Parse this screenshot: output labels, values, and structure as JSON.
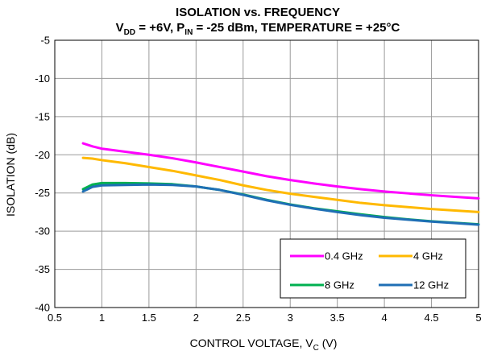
{
  "chart_data": {
    "type": "line",
    "title": "ISOLATION vs. FREQUENCY",
    "subtitle": {
      "vdd_main": "V",
      "vdd_sub": "DD",
      "vdd_rest": " = +6V, P",
      "pin_sub": "IN",
      "pin_rest": " = -25 dBm, TEMPERATURE = +25°C"
    },
    "xlabel": {
      "main": "CONTROL VOLTAGE, V",
      "sub": "C",
      "unit": " (V)"
    },
    "ylabel": "ISOLATION (dB)",
    "xlim": [
      0.5,
      5
    ],
    "ylim": [
      -40,
      -5
    ],
    "xticks": [
      "0.5",
      "1",
      "1.5",
      "2",
      "2.5",
      "3",
      "3.5",
      "4",
      "4.5",
      "5"
    ],
    "yticks": [
      "-5",
      "-10",
      "-15",
      "-20",
      "-25",
      "-30",
      "-35",
      "-40"
    ],
    "grid": true,
    "legend_position": "bottom-right",
    "series": [
      {
        "name": "0.4 GHz",
        "color": "#ff00ff",
        "points": [
          [
            0.8,
            -18.5
          ],
          [
            0.9,
            -18.9
          ],
          [
            1.0,
            -19.2
          ],
          [
            1.25,
            -19.6
          ],
          [
            1.5,
            -20.0
          ],
          [
            1.75,
            -20.45
          ],
          [
            2.0,
            -21.0
          ],
          [
            2.25,
            -21.6
          ],
          [
            2.5,
            -22.2
          ],
          [
            2.75,
            -22.8
          ],
          [
            3.0,
            -23.3
          ],
          [
            3.25,
            -23.75
          ],
          [
            3.5,
            -24.15
          ],
          [
            3.75,
            -24.5
          ],
          [
            4.0,
            -24.8
          ],
          [
            4.25,
            -25.05
          ],
          [
            4.5,
            -25.3
          ],
          [
            4.75,
            -25.5
          ],
          [
            5.0,
            -25.7
          ]
        ]
      },
      {
        "name": "4 GHz",
        "color": "#ffb900",
        "points": [
          [
            0.8,
            -20.4
          ],
          [
            0.9,
            -20.5
          ],
          [
            1.0,
            -20.7
          ],
          [
            1.25,
            -21.1
          ],
          [
            1.5,
            -21.6
          ],
          [
            1.75,
            -22.1
          ],
          [
            2.0,
            -22.7
          ],
          [
            2.25,
            -23.3
          ],
          [
            2.5,
            -24.0
          ],
          [
            2.75,
            -24.6
          ],
          [
            3.0,
            -25.1
          ],
          [
            3.25,
            -25.5
          ],
          [
            3.5,
            -25.9
          ],
          [
            3.75,
            -26.3
          ],
          [
            4.0,
            -26.6
          ],
          [
            4.25,
            -26.85
          ],
          [
            4.5,
            -27.1
          ],
          [
            4.75,
            -27.3
          ],
          [
            5.0,
            -27.5
          ]
        ]
      },
      {
        "name": "8 GHz",
        "color": "#00b050",
        "points": [
          [
            0.8,
            -24.5
          ],
          [
            0.85,
            -24.2
          ],
          [
            0.9,
            -23.9
          ],
          [
            1.0,
            -23.7
          ],
          [
            1.25,
            -23.7
          ],
          [
            1.5,
            -23.75
          ],
          [
            1.75,
            -23.85
          ],
          [
            2.0,
            -24.15
          ],
          [
            2.25,
            -24.6
          ],
          [
            2.5,
            -25.2
          ],
          [
            2.75,
            -25.9
          ],
          [
            3.0,
            -26.5
          ],
          [
            3.25,
            -27.0
          ],
          [
            3.5,
            -27.4
          ],
          [
            3.75,
            -27.8
          ],
          [
            4.0,
            -28.15
          ],
          [
            4.25,
            -28.45
          ],
          [
            4.5,
            -28.7
          ],
          [
            4.75,
            -28.9
          ],
          [
            5.0,
            -29.1
          ]
        ]
      },
      {
        "name": "12 GHz",
        "color": "#1f6fb5",
        "points": [
          [
            0.8,
            -24.8
          ],
          [
            0.85,
            -24.5
          ],
          [
            0.9,
            -24.2
          ],
          [
            1.0,
            -24.0
          ],
          [
            1.25,
            -23.95
          ],
          [
            1.5,
            -23.9
          ],
          [
            1.75,
            -23.95
          ],
          [
            2.0,
            -24.15
          ],
          [
            2.25,
            -24.6
          ],
          [
            2.5,
            -25.25
          ],
          [
            2.75,
            -25.95
          ],
          [
            3.0,
            -26.55
          ],
          [
            3.25,
            -27.05
          ],
          [
            3.5,
            -27.5
          ],
          [
            3.75,
            -27.9
          ],
          [
            4.0,
            -28.25
          ],
          [
            4.25,
            -28.5
          ],
          [
            4.5,
            -28.75
          ],
          [
            4.75,
            -28.95
          ],
          [
            5.0,
            -29.15
          ]
        ]
      }
    ]
  }
}
